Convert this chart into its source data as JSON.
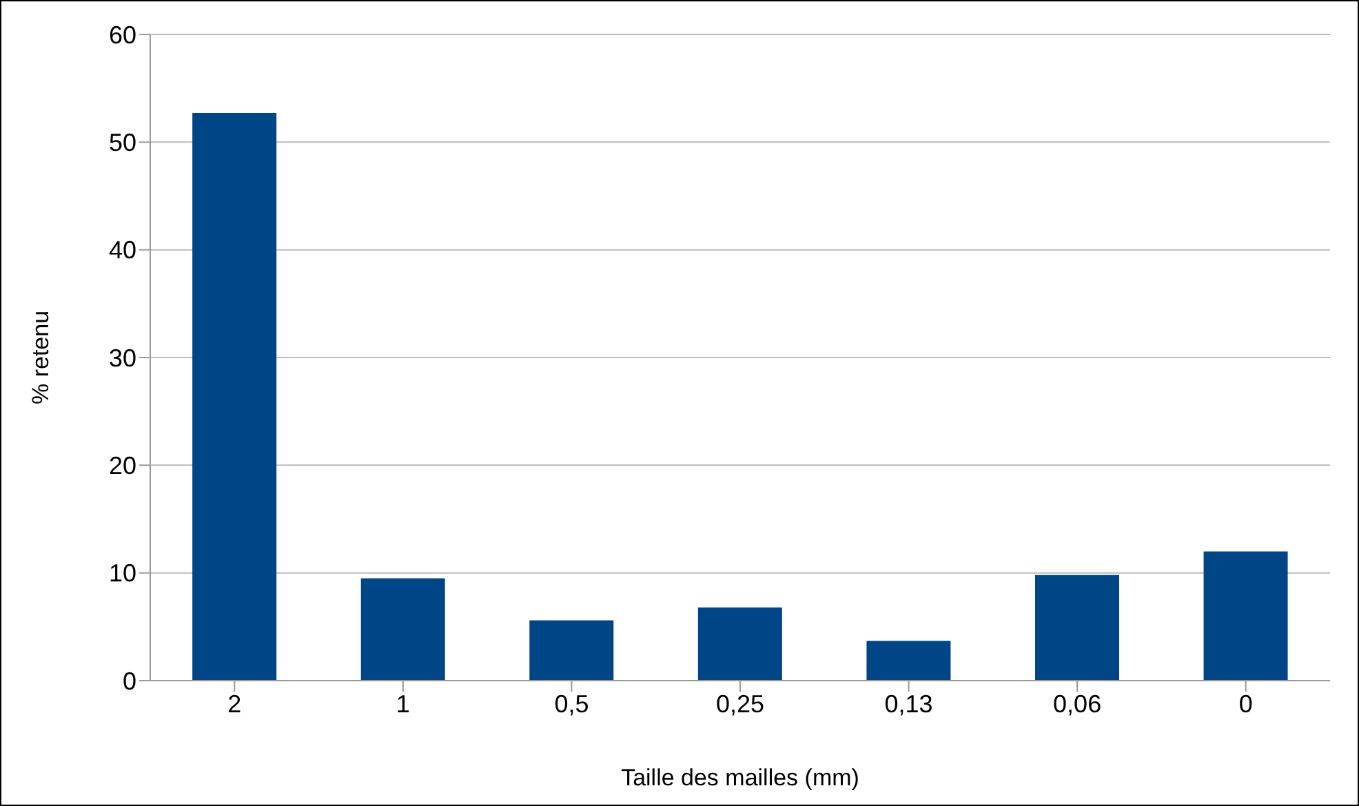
{
  "chart_data": {
    "type": "bar",
    "xlabel": "Taille des mailles (mm)",
    "ylabel": "% retenu",
    "categories": [
      "2",
      "1",
      "0,5",
      "0,25",
      "0,13",
      "0,06",
      "0"
    ],
    "values": [
      52.7,
      9.5,
      5.6,
      6.8,
      3.7,
      9.8,
      12
    ],
    "color": "#004586",
    "ylim": [
      0,
      60
    ],
    "yticks": [
      0,
      10,
      20,
      30,
      40,
      50,
      60
    ],
    "grid": "y"
  }
}
